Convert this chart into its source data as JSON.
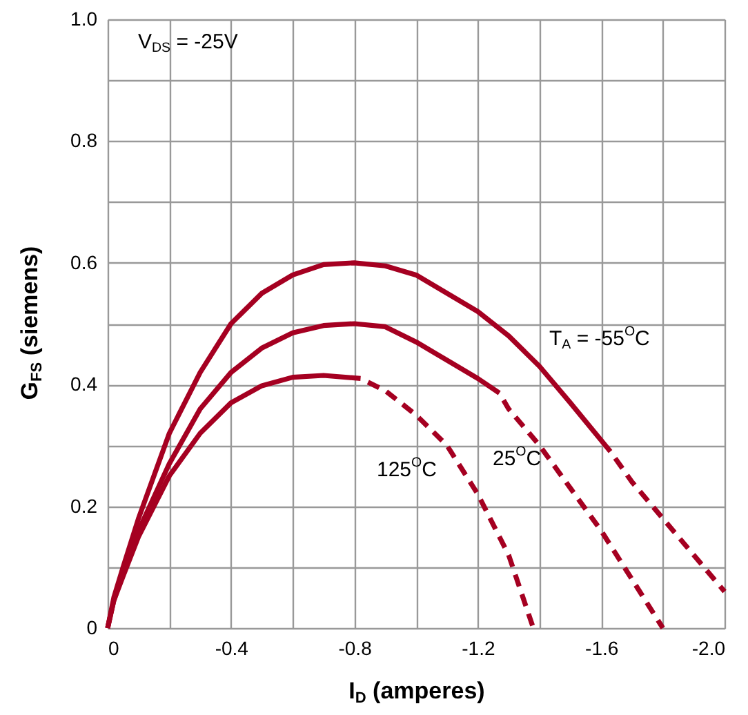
{
  "chart_data": {
    "type": "line",
    "xlabel": "I$_{D}$ (amperes)",
    "ylabel": "G$_{FS}$ (siemens)",
    "xlim": [
      0,
      -2.0
    ],
    "ylim": [
      0,
      1.0
    ],
    "xticks": [
      {
        "value": 0,
        "label": "0"
      },
      {
        "value": -0.2,
        "label": null
      },
      {
        "value": -0.4,
        "label": "-0.4"
      },
      {
        "value": -0.6,
        "label": null
      },
      {
        "value": -0.8,
        "label": "-0.8"
      },
      {
        "value": -1.0,
        "label": null
      },
      {
        "value": -1.2,
        "label": "-1.2"
      },
      {
        "value": -1.4,
        "label": null
      },
      {
        "value": -1.6,
        "label": "-1.6"
      },
      {
        "value": -1.8,
        "label": null
      },
      {
        "value": -2.0,
        "label": "-2.0"
      }
    ],
    "yticks": [
      {
        "value": 0,
        "label": "0"
      },
      {
        "value": 0.1,
        "label": null
      },
      {
        "value": 0.2,
        "label": "0.2"
      },
      {
        "value": 0.3,
        "label": null
      },
      {
        "value": 0.4,
        "label": "0.4"
      },
      {
        "value": 0.5,
        "label": null
      },
      {
        "value": 0.6,
        "label": "0.6"
      },
      {
        "value": 0.7,
        "label": null
      },
      {
        "value": 0.8,
        "label": "0.8"
      },
      {
        "value": 0.9,
        "label": null
      },
      {
        "value": 1.0,
        "label": "1.0"
      }
    ],
    "grid": true,
    "marker": "none",
    "series": [
      {
        "color": "#a50021",
        "line_style": "solid",
        "x": [
          0,
          -0.02,
          -0.05,
          -0.1,
          -0.2,
          -0.3,
          -0.4,
          -0.5,
          -0.6,
          -0.7,
          -0.8,
          -0.9,
          -1.0,
          -1.1,
          -1.2,
          -1.3,
          -1.4,
          -1.5,
          -1.63
        ],
        "values": [
          0,
          0.05,
          0.1,
          0.18,
          0.32,
          0.42,
          0.5,
          0.55,
          0.58,
          0.597,
          0.6,
          0.595,
          0.58,
          0.55,
          0.52,
          0.48,
          0.43,
          0.37,
          0.29
        ]
      },
      {
        "color": "#a50021",
        "line_style": "dashed",
        "x": [
          -1.63,
          -1.7,
          -1.8,
          -1.9,
          -2.0
        ],
        "values": [
          0.29,
          0.24,
          0.18,
          0.12,
          0.06
        ]
      },
      {
        "color": "#a50021",
        "line_style": "solid",
        "x": [
          0,
          -0.02,
          -0.05,
          -0.1,
          -0.2,
          -0.3,
          -0.4,
          -0.5,
          -0.6,
          -0.7,
          -0.8,
          -0.9,
          -1.0,
          -1.1,
          -1.2,
          -1.27
        ],
        "values": [
          0,
          0.045,
          0.09,
          0.16,
          0.27,
          0.36,
          0.42,
          0.46,
          0.485,
          0.497,
          0.5,
          0.495,
          0.47,
          0.44,
          0.41,
          0.386
        ]
      },
      {
        "color": "#a50021",
        "line_style": "dashed",
        "x": [
          -1.27,
          -1.3,
          -1.4,
          -1.5,
          -1.6,
          -1.7,
          -1.8
        ],
        "values": [
          0.386,
          0.36,
          0.3,
          0.23,
          0.16,
          0.08,
          0
        ]
      },
      {
        "color": "#a50021",
        "line_style": "solid",
        "x": [
          0,
          -0.02,
          -0.05,
          -0.1,
          -0.2,
          -0.3,
          -0.4,
          -0.5,
          -0.6,
          -0.7,
          -0.82
        ],
        "values": [
          0,
          0.045,
          0.085,
          0.15,
          0.25,
          0.32,
          0.37,
          0.398,
          0.412,
          0.415,
          0.41
        ]
      },
      {
        "color": "#a50021",
        "line_style": "dashed",
        "x": [
          -0.82,
          -0.9,
          -1.0,
          -1.1,
          -1.2,
          -1.3,
          -1.38
        ],
        "values": [
          0.41,
          0.39,
          0.35,
          0.3,
          0.22,
          0.12,
          0
        ]
      }
    ],
    "annotations": [
      "V$_{DS}$ = -25V",
      "T$_{A}$ = -55$^{O}$C",
      "25$^{O}$C",
      "125$^{O}$C"
    ]
  }
}
